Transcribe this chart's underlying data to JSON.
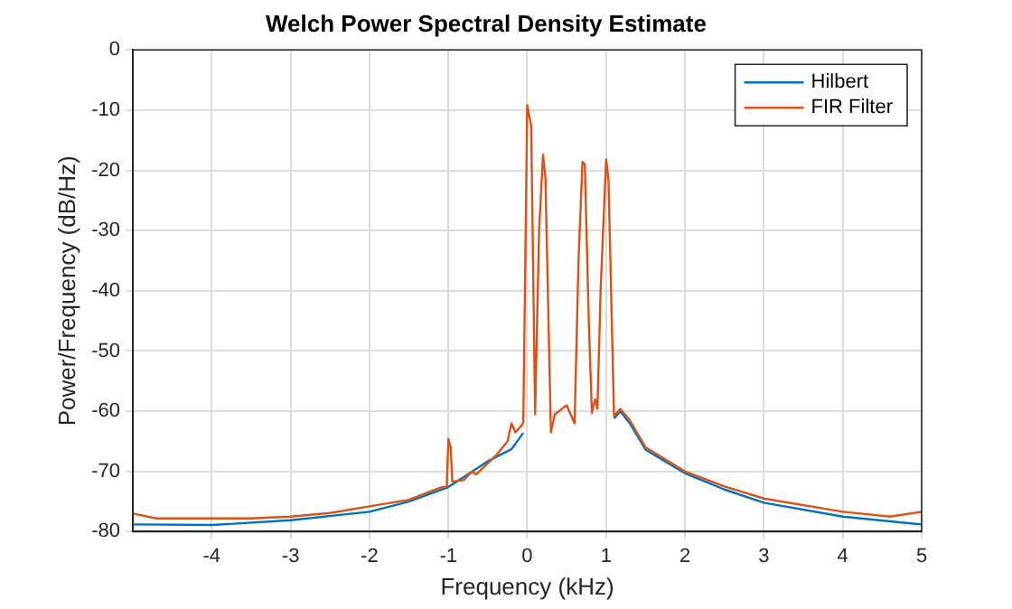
{
  "chart_data": {
    "type": "line",
    "title": "Welch Power Spectral Density Estimate",
    "xlabel": "Frequency (kHz)",
    "ylabel": "Power/Frequency (dB/Hz)",
    "xlim": [
      -5,
      5
    ],
    "xticks": [
      -4,
      -3,
      -2,
      -1,
      0,
      1,
      2,
      3,
      4,
      5
    ],
    "ylim": [
      -80,
      0
    ],
    "yticks": [
      -80,
      -70,
      -60,
      -50,
      -40,
      -30,
      -20,
      -10,
      0
    ],
    "grid": true,
    "legend": "top right",
    "series": [
      {
        "name": "Hilbert",
        "color": "#0072bd",
        "x": [
          -5,
          -4,
          -3,
          -2,
          -1.5,
          -1,
          -0.5,
          -0.2,
          -0.05,
          0,
          1.1,
          1.18,
          1.3,
          1.5,
          2,
          2.5,
          3,
          4,
          5
        ],
        "values": [
          -78.8,
          -78.9,
          -78.1,
          -76.7,
          -75,
          -72.6,
          -68.3,
          -66.3,
          -63.6,
          null,
          -61.2,
          -60,
          -62,
          -66.4,
          -70.3,
          -73,
          -75.2,
          -77.5,
          -78.8
        ]
      },
      {
        "name": "FIR Filter",
        "color": "#d95319",
        "x": [
          -5,
          -4.7,
          -4,
          -3.5,
          -3,
          -2.5,
          -2,
          -1.5,
          -1.1,
          -1.02,
          -1,
          -0.97,
          -0.95,
          -0.8,
          -0.7,
          -0.65,
          -0.4,
          -0.25,
          -0.2,
          -0.15,
          -0.1,
          -0.05,
          0,
          0.05,
          0.1,
          0.15,
          0.2,
          0.23,
          0.3,
          0.35,
          0.5,
          0.6,
          0.65,
          0.7,
          0.73,
          0.78,
          0.82,
          0.86,
          0.89,
          0.93,
          1,
          1.03,
          1.1,
          1.18,
          1.3,
          1.5,
          2,
          2.5,
          3,
          4,
          4.6,
          5
        ],
        "values": [
          -77,
          -77.8,
          -77.8,
          -77.8,
          -77.5,
          -76.9,
          -75.8,
          -74.7,
          -72.7,
          -72.5,
          -64.6,
          -66,
          -71.7,
          -71.4,
          -70,
          -70.5,
          -67.4,
          -65,
          -62,
          -63.5,
          -62.8,
          -62,
          -9.2,
          -12.6,
          -60.5,
          -30,
          -17.4,
          -21,
          -63.5,
          -60.5,
          -59,
          -62,
          -35,
          -18.6,
          -19,
          -45,
          -60.3,
          -58,
          -59.6,
          -40,
          -18.2,
          -21.5,
          -60.8,
          -59.6,
          -61.5,
          -66,
          -70,
          -72.5,
          -74.5,
          -76.7,
          -77.5,
          -76.7
        ]
      }
    ]
  }
}
